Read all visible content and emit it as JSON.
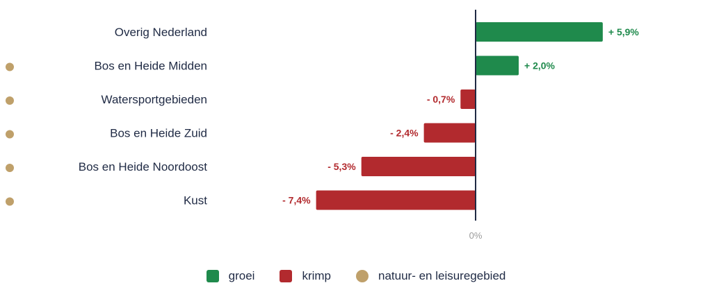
{
  "colors": {
    "grow": "#1f8a4c",
    "shrink": "#b22a2e",
    "marker": "#bfa06a",
    "axis": "#1f2a44",
    "label": "#1f2a44"
  },
  "chart_data": {
    "type": "bar",
    "orientation": "horizontal",
    "title": "",
    "xlabel": "",
    "ylabel": "",
    "zero_label": "0%",
    "categories": [
      "Overig Nederland",
      "Bos en Heide Midden",
      "Watersportgebieden",
      "Bos en Heide Zuid",
      "Bos en Heide Noordoost",
      "Kust"
    ],
    "values": [
      5.9,
      2.0,
      -0.7,
      -2.4,
      -5.3,
      -7.4
    ],
    "value_labels": [
      "+ 5,9%",
      "+ 2,0%",
      "- 0,7%",
      "- 2,4%",
      "- 5,3%",
      "- 7,4%"
    ],
    "nature_area": [
      false,
      true,
      true,
      true,
      true,
      true
    ],
    "legend_position": "bottom",
    "grid": false
  },
  "legend": {
    "items": [
      {
        "label": "groei",
        "shape": "square",
        "color_key": "grow"
      },
      {
        "label": "krimp",
        "shape": "square",
        "color_key": "shrink"
      },
      {
        "label": "natuur- en leisuregebied",
        "shape": "circle",
        "color_key": "marker"
      }
    ]
  }
}
